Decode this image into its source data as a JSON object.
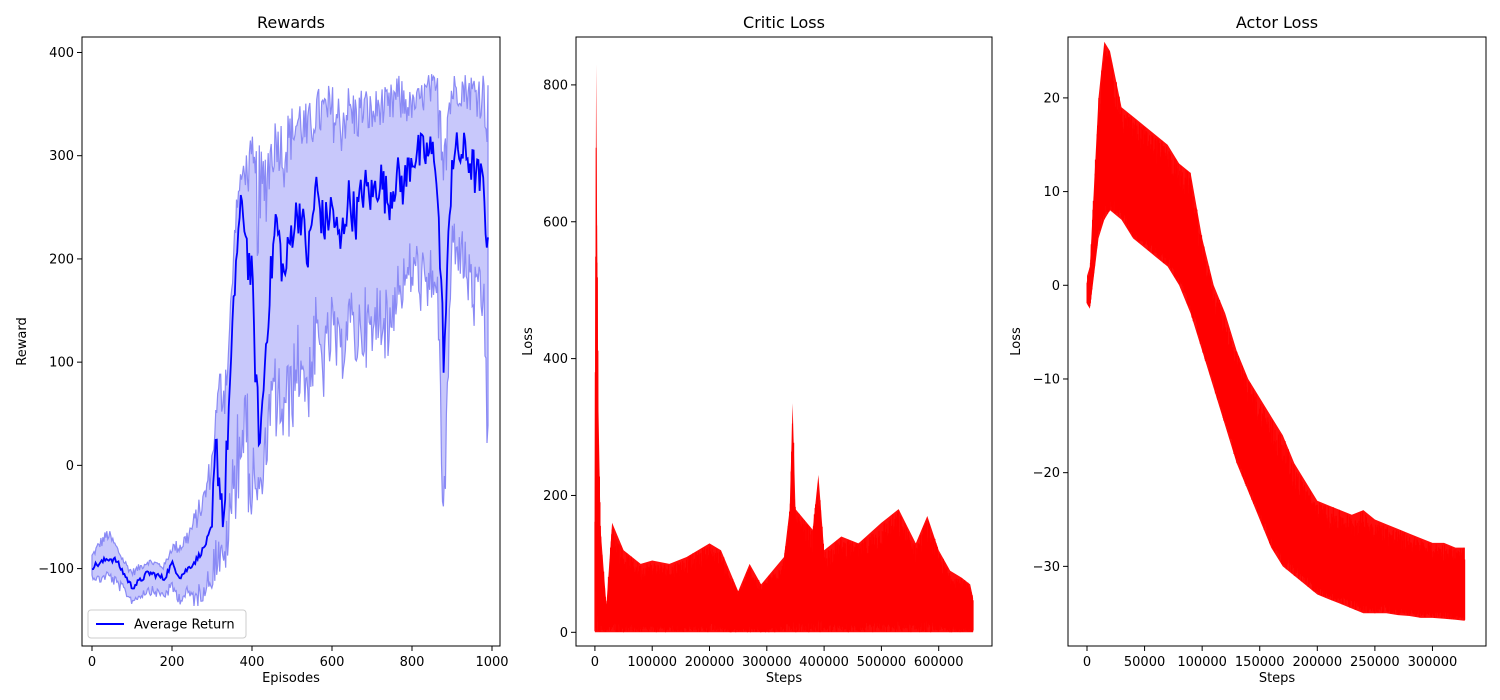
{
  "colors": {
    "avg_line": "#0000ff",
    "band": "#8a8af5",
    "band_fill": "#c8c8fb",
    "loss": "#ff0000",
    "axis": "#000000"
  },
  "chart_data": [
    {
      "type": "line",
      "title": "Rewards",
      "xlabel": "Episodes",
      "ylabel": "Reward",
      "xlim": [
        -25,
        1020
      ],
      "ylim": [
        -175,
        415
      ],
      "xticks": [
        0,
        200,
        400,
        600,
        800,
        1000
      ],
      "yticks": [
        -100,
        0,
        100,
        200,
        300,
        400
      ],
      "xtick_labels": [
        "0",
        "200",
        "400",
        "600",
        "800",
        "1000"
      ],
      "ytick_labels": [
        "−100",
        "0",
        "100",
        "200",
        "300",
        "400"
      ],
      "legend": {
        "position": "lower-left",
        "entries": [
          "Average Return"
        ]
      },
      "series": [
        {
          "name": "Average Return",
          "x": [
            0,
            20,
            40,
            60,
            80,
            100,
            120,
            140,
            160,
            180,
            200,
            220,
            240,
            260,
            280,
            300,
            310,
            320,
            330,
            340,
            350,
            360,
            370,
            380,
            390,
            400,
            410,
            420,
            440,
            460,
            480,
            500,
            520,
            540,
            560,
            580,
            600,
            620,
            640,
            660,
            680,
            700,
            720,
            740,
            760,
            780,
            800,
            820,
            840,
            860,
            880,
            900,
            920,
            940,
            960,
            980,
            990
          ],
          "y": [
            -98,
            -95,
            -90,
            -92,
            -105,
            -118,
            -112,
            -104,
            -106,
            -110,
            -95,
            -108,
            -100,
            -92,
            -80,
            -60,
            20,
            -20,
            -50,
            40,
            110,
            200,
            240,
            245,
            200,
            180,
            80,
            20,
            150,
            240,
            180,
            230,
            250,
            200,
            270,
            230,
            250,
            210,
            260,
            240,
            270,
            260,
            280,
            255,
            280,
            270,
            302,
            300,
            302,
            300,
            100,
            300,
            303,
            300,
            280,
            270,
            200
          ]
        }
      ],
      "band": {
        "x": [
          0,
          20,
          40,
          60,
          80,
          100,
          120,
          140,
          160,
          180,
          200,
          220,
          240,
          260,
          280,
          300,
          320,
          340,
          360,
          380,
          400,
          420,
          440,
          460,
          480,
          500,
          520,
          540,
          560,
          580,
          600,
          620,
          640,
          660,
          680,
          700,
          720,
          740,
          760,
          780,
          800,
          820,
          840,
          860,
          880,
          900,
          920,
          940,
          960,
          980,
          990
        ],
        "upper": [
          -85,
          -70,
          -60,
          -75,
          -90,
          -100,
          -95,
          -90,
          -92,
          -95,
          -75,
          -70,
          -60,
          -40,
          -20,
          20,
          100,
          120,
          260,
          300,
          320,
          310,
          330,
          340,
          340,
          350,
          360,
          350,
          365,
          370,
          370,
          365,
          370,
          365,
          370,
          360,
          370,
          365,
          380,
          375,
          360,
          370,
          380,
          380,
          385,
          380,
          385,
          380,
          385,
          385,
          375
        ],
        "lower": [
          -110,
          -115,
          -110,
          -120,
          -125,
          -135,
          -130,
          -125,
          -128,
          -130,
          -125,
          -135,
          -130,
          -140,
          -130,
          -120,
          -110,
          -100,
          -50,
          -20,
          -70,
          -40,
          0,
          20,
          10,
          30,
          60,
          40,
          80,
          60,
          100,
          70,
          110,
          90,
          100,
          80,
          120,
          90,
          140,
          150,
          160,
          150,
          120,
          170,
          -100,
          200,
          180,
          150,
          120,
          130,
          -40
        ]
      }
    },
    {
      "type": "line",
      "title": "Critic Loss",
      "xlabel": "Steps",
      "ylabel": "Loss",
      "xlim": [
        -33000,
        693000
      ],
      "ylim": [
        -20,
        870
      ],
      "xticks": [
        0,
        100000,
        200000,
        300000,
        400000,
        500000,
        600000
      ],
      "yticks": [
        0,
        200,
        400,
        600,
        800
      ],
      "xtick_labels": [
        "0",
        "100000",
        "200000",
        "300000",
        "400000",
        "500000",
        "600000"
      ],
      "ytick_labels": [
        "0",
        "200",
        "400",
        "600",
        "800"
      ],
      "series": [
        {
          "name": "",
          "envelope_x": [
            0,
            2000,
            4000,
            6000,
            10000,
            20000,
            30000,
            50000,
            80000,
            100000,
            130000,
            160000,
            200000,
            220000,
            250000,
            270000,
            290000,
            310000,
            330000,
            340000,
            345000,
            350000,
            380000,
            390000,
            400000,
            430000,
            460000,
            500000,
            530000,
            560000,
            580000,
            600000,
            620000,
            640000,
            655000,
            660000
          ],
          "envelope_upper": [
            200,
            830,
            570,
            340,
            150,
            40,
            160,
            120,
            100,
            105,
            100,
            110,
            130,
            120,
            60,
            100,
            70,
            90,
            110,
            180,
            335,
            180,
            150,
            230,
            120,
            140,
            130,
            160,
            180,
            130,
            170,
            120,
            90,
            80,
            70,
            50
          ],
          "envelope_lower": [
            0,
            0,
            0,
            0,
            0,
            0,
            0,
            0,
            0,
            0,
            0,
            0,
            0,
            0,
            0,
            0,
            0,
            0,
            0,
            0,
            0,
            0,
            0,
            0,
            0,
            0,
            0,
            0,
            0,
            0,
            0,
            0,
            0,
            0,
            0,
            0
          ]
        }
      ]
    },
    {
      "type": "line",
      "title": "Actor Loss",
      "xlabel": "Steps",
      "ylabel": "Loss",
      "xlim": [
        -16500,
        346500
      ],
      "ylim": [
        -38.5,
        26.5
      ],
      "xticks": [
        0,
        50000,
        100000,
        150000,
        200000,
        250000,
        300000
      ],
      "yticks": [
        -30,
        -20,
        -10,
        0,
        10,
        20
      ],
      "xtick_labels": [
        "0",
        "50000",
        "100000",
        "150000",
        "200000",
        "250000",
        "300000"
      ],
      "ytick_labels": [
        "−30",
        "−20",
        "−10",
        "0",
        "10",
        "20"
      ],
      "series": [
        {
          "name": "",
          "envelope_x": [
            0,
            2500,
            5000,
            10000,
            15000,
            20000,
            30000,
            40000,
            50000,
            60000,
            70000,
            80000,
            90000,
            100000,
            110000,
            120000,
            130000,
            140000,
            150000,
            160000,
            170000,
            180000,
            190000,
            200000,
            210000,
            220000,
            230000,
            240000,
            250000,
            260000,
            270000,
            280000,
            290000,
            300000,
            310000,
            320000,
            328000
          ],
          "envelope_upper": [
            1,
            2,
            8,
            20,
            26,
            25,
            19,
            18,
            17,
            16,
            15,
            13,
            12,
            5,
            0,
            -3,
            -7,
            -10,
            -12,
            -14,
            -16,
            -19,
            -21,
            -23,
            -23.5,
            -24,
            -24.5,
            -24,
            -25,
            -25.5,
            -26,
            -26.5,
            -27,
            -27.5,
            -27.5,
            -28,
            -28
          ],
          "envelope_lower": [
            -2,
            -2.5,
            0,
            5,
            7,
            8,
            7,
            5,
            4,
            3,
            2,
            0,
            -3,
            -7,
            -11,
            -15,
            -19,
            -22,
            -25,
            -28,
            -30,
            -31,
            -32,
            -33,
            -33.5,
            -34,
            -34.5,
            -35,
            -35,
            -35,
            -35.2,
            -35.3,
            -35.5,
            -35.5,
            -35.6,
            -35.7,
            -35.8
          ]
        }
      ]
    }
  ]
}
